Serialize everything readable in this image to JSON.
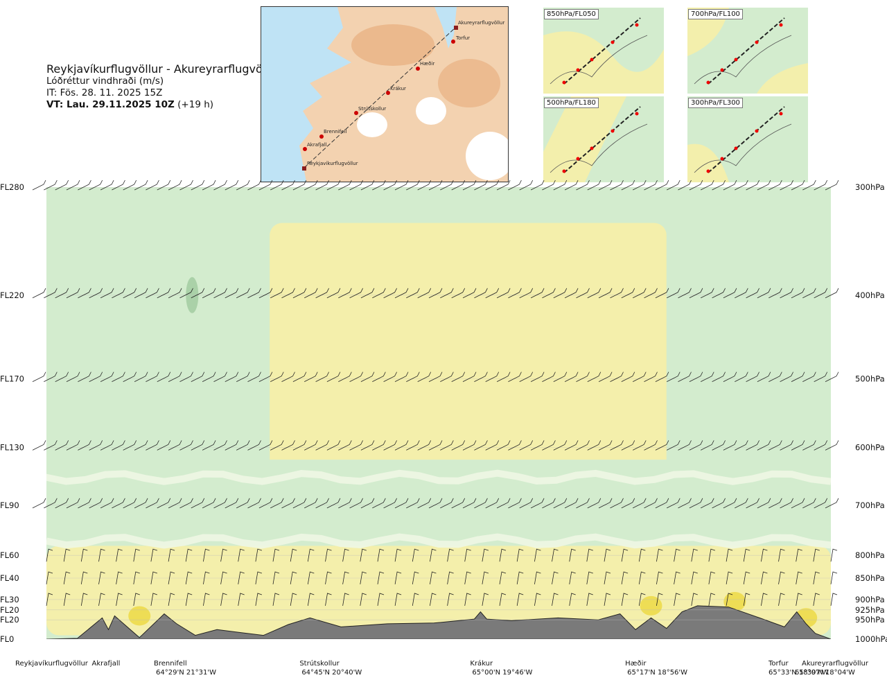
{
  "header": {
    "title": "Reykjavíkurflugvöllur - Akureyrarflugvöllur",
    "variable": "Lóðréttur vindhraði (m/s)",
    "issue_time": "IT: Fös. 28. 11. 2025 15Z",
    "valid_time_bold": "VT: Lau. 29.11.2025 10Z",
    "valid_time_offset": "(+19 h)"
  },
  "route_map": {
    "points": [
      "Akureyrarflugvöllur",
      "Torfur",
      "Hæðir",
      "Krákur",
      "Strútskollur",
      "Brennifell",
      "Akrafjall",
      "Reykjavíkurflugvöllur"
    ]
  },
  "level_maps": [
    {
      "label": "850hPa/FL050"
    },
    {
      "label": "700hPa/FL100"
    },
    {
      "label": "500hPa/FL180"
    },
    {
      "label": "300hPa/FL300"
    }
  ],
  "colors": {
    "green": "#d3ecce",
    "pale": "#eef7e4",
    "yellow": "#f6efa9",
    "gold": "#eedd55",
    "darkgreen": "#8fbf8f",
    "terrain": "#7a7a7a",
    "sea": "#bfe3f5",
    "land": "#f2cda8"
  },
  "chart_data": {
    "type": "heatmap",
    "title": "Lóðréttur vindhraði (m/s)",
    "x_stations": [
      {
        "name": "Reykjavíkurflugvöllur",
        "coord": "",
        "km": 0
      },
      {
        "name": "Akrafjall",
        "coord": "",
        "km": 18
      },
      {
        "name": "Brennifell",
        "coord": "64°29'N 21°31'W",
        "km": 38
      },
      {
        "name": "Strútskollur",
        "coord": "64°45'N 20°40'W",
        "km": 85
      },
      {
        "name": "Krákur",
        "coord": "65°00'N 19°46'W",
        "km": 140
      },
      {
        "name": "Hæðir",
        "coord": "65°17'N 18°56'W",
        "km": 190
      },
      {
        "name": "Torfur",
        "coord": "65°33'N 18°07'W",
        "km": 245
      },
      {
        "name": "Akureyrarflugvöllur",
        "coord": "65°39'N 18°04'W",
        "km": 253
      }
    ],
    "x_range_km": [
      0,
      253
    ],
    "y_levels": [
      {
        "fl": "FL280",
        "hpa": "300hPa",
        "p": 300
      },
      {
        "fl": "FL220",
        "hpa": "400hPa",
        "p": 400
      },
      {
        "fl": "FL170",
        "hpa": "500hPa",
        "p": 500
      },
      {
        "fl": "FL130",
        "hpa": "600hPa",
        "p": 600
      },
      {
        "fl": "FL90",
        "hpa": "700hPa",
        "p": 700
      },
      {
        "fl": "FL60",
        "hpa": "800hPa",
        "p": 800
      },
      {
        "fl": "FL40",
        "hpa": "850hPa",
        "p": 850
      },
      {
        "fl": "FL30",
        "hpa": "900hPa",
        "p": 900
      },
      {
        "fl": "FL20",
        "hpa": "925hPa",
        "p": 925
      },
      {
        "fl": "FL20",
        "hpa": "950hPa",
        "p": 950
      },
      {
        "fl": "FL0",
        "hpa": "1000hPa",
        "p": 1000
      }
    ],
    "p_range": [
      300,
      1000
    ],
    "regions": [
      {
        "kind": "updraft",
        "x_km": [
          72,
          200
        ],
        "p": [
          330,
          640
        ]
      },
      {
        "kind": "updraft",
        "x_km": [
          0,
          253
        ],
        "p": [
          780,
          990
        ]
      },
      {
        "kind": "downdraft",
        "x_km": [
          0,
          253
        ],
        "p": [
          620,
          780
        ]
      },
      {
        "kind": "downdraft",
        "x_km": [
          0,
          70
        ],
        "p": [
          300,
          620
        ]
      },
      {
        "kind": "downdraft",
        "x_km": [
          200,
          253
        ],
        "p": [
          300,
          780
        ]
      }
    ],
    "terrain_profile_km": [
      0,
      10,
      18,
      20,
      22,
      30,
      38,
      42,
      48,
      55,
      62,
      70,
      78,
      85,
      95,
      110,
      125,
      138,
      140,
      142,
      150,
      165,
      178,
      185,
      190,
      195,
      200,
      205,
      210,
      220,
      230,
      238,
      242,
      245,
      248,
      253
    ],
    "terrain_profile_hpa": [
      1000,
      998,
      945,
      975,
      940,
      996,
      935,
      960,
      990,
      975,
      982,
      990,
      962,
      945,
      968,
      960,
      958,
      948,
      930,
      948,
      952,
      945,
      950,
      935,
      975,
      945,
      972,
      930,
      915,
      918,
      945,
      968,
      930,
      960,
      985,
      1000
    ]
  }
}
